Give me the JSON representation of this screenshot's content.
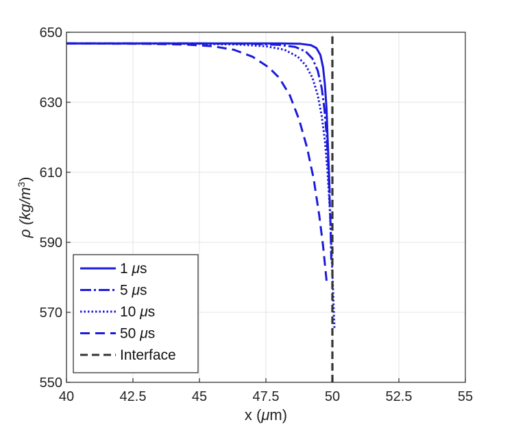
{
  "chart_data": {
    "type": "line",
    "title": "",
    "xlabel_prefix": "x (",
    "xlabel_symbol": "μ",
    "xlabel_suffix": "m)",
    "ylabel_prefix": "ρ (kg/m",
    "ylabel_sup": "3",
    "ylabel_suffix": ")",
    "xlim": [
      40,
      55
    ],
    "ylim": [
      550,
      650
    ],
    "xticks": [
      40,
      42.5,
      45,
      47.5,
      50,
      52.5,
      55
    ],
    "xtick_labels": [
      "40",
      "42.5",
      "45",
      "47.5",
      "50",
      "52.5",
      "55"
    ],
    "yticks": [
      550,
      570,
      590,
      610,
      630,
      650
    ],
    "ytick_labels": [
      "550",
      "570",
      "590",
      "610",
      "630",
      "650"
    ],
    "grid": true,
    "legend_position": "bottom-left",
    "series": [
      {
        "name": "1 μs",
        "label_num": "1 ",
        "label_unit": "s",
        "color": "#1a1adb",
        "style": "solid",
        "x": [
          40,
          45,
          47,
          48,
          48.8,
          49.2,
          49.4,
          49.55,
          49.65,
          49.72,
          49.78,
          49.82,
          49.86,
          49.9
        ],
        "y": [
          646.8,
          646.8,
          646.8,
          646.8,
          646.7,
          646.3,
          645.5,
          643.5,
          640,
          635,
          628,
          620,
          612,
          604
        ]
      },
      {
        "name": "5 μs",
        "label_num": "5 ",
        "label_unit": "s",
        "color": "#1a1adb",
        "style": "dashdot",
        "x": [
          40,
          45,
          47,
          48,
          48.6,
          49,
          49.25,
          49.45,
          49.6,
          49.7,
          49.78,
          49.84,
          49.89,
          49.93,
          49.96
        ],
        "y": [
          646.8,
          646.8,
          646.7,
          646.4,
          645.8,
          644.5,
          642.5,
          639,
          634,
          628,
          621,
          613,
          604,
          595,
          585
        ]
      },
      {
        "name": "10 μs",
        "label_num": "10 ",
        "label_unit": "s",
        "color": "#1a1adb",
        "style": "dotted",
        "x": [
          40,
          45,
          46.5,
          47.5,
          48.2,
          48.7,
          49,
          49.25,
          49.45,
          49.6,
          49.72,
          49.82,
          49.9,
          49.96,
          50.02,
          50.08
        ],
        "y": [
          646.8,
          646.7,
          646.5,
          646,
          645,
          643,
          640.5,
          637,
          632,
          626,
          619,
          610,
          600,
          589,
          577,
          565
        ]
      },
      {
        "name": "50 μs",
        "label_num": "50 ",
        "label_unit": "s",
        "color": "#1a1adb",
        "style": "dashed",
        "x": [
          40,
          43,
          44.5,
          45.5,
          46.3,
          47,
          47.6,
          48,
          48.4,
          48.75,
          49.05,
          49.3,
          49.5,
          49.65,
          49.78
        ],
        "y": [
          646.8,
          646.7,
          646.5,
          646,
          645,
          643,
          640,
          637,
          632,
          625,
          617,
          608,
          598,
          589,
          579
        ]
      },
      {
        "name": "Interface",
        "label_num": "Interface",
        "label_unit": "",
        "color": "#333333",
        "style": "interface",
        "x": [
          50,
          50
        ],
        "y": [
          550,
          650
        ]
      }
    ]
  }
}
